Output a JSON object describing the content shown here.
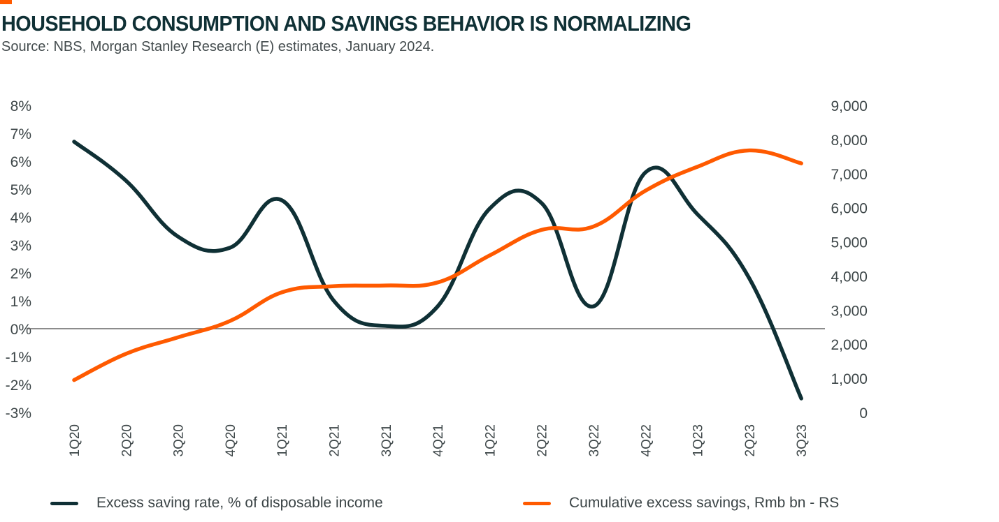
{
  "header": {
    "title": "HOUSEHOLD CONSUMPTION AND SAVINGS BEHAVIOR IS NORMALIZING",
    "subtitle": "Source: NBS, Morgan Stanley Research (E) estimates, January 2024."
  },
  "colors": {
    "accent": "#ff5a00",
    "series_dark": "#0f3035",
    "series_orange": "#ff5a00",
    "zero_line": "#666666",
    "axis_text": "#3d4648"
  },
  "chart_data": {
    "type": "line",
    "title": "HOUSEHOLD CONSUMPTION AND SAVINGS BEHAVIOR IS NORMALIZING",
    "categories": [
      "1Q20",
      "2Q20",
      "3Q20",
      "4Q20",
      "1Q21",
      "2Q21",
      "3Q21",
      "4Q21",
      "1Q22",
      "2Q22",
      "3Q22",
      "4Q22",
      "1Q23",
      "2Q23",
      "3Q23"
    ],
    "left_axis": {
      "min": -3,
      "max": 8,
      "step": 1,
      "tick_labels": [
        "8%",
        "7%",
        "6%",
        "5%",
        "4%",
        "3%",
        "2%",
        "1%",
        "0%",
        "-1%",
        "-2%",
        "-3%"
      ]
    },
    "right_axis": {
      "min": 0,
      "max": 9000,
      "step": 1000,
      "tick_labels": [
        "9,000",
        "8,000",
        "7,000",
        "6,000",
        "5,000",
        "4,000",
        "3,000",
        "2,000",
        "1,000",
        "0"
      ]
    },
    "zero_line": true,
    "grid": false,
    "legend_position": "bottom",
    "series": [
      {
        "name": "Excess saving rate, % of disposable income",
        "axis": "left",
        "values": [
          6.7,
          5.3,
          3.3,
          2.9,
          4.6,
          1.0,
          0.1,
          0.8,
          4.3,
          4.5,
          0.8,
          5.6,
          4.1,
          1.8,
          -2.5
        ]
      },
      {
        "name": "Cumulative excess savings, Rmb bn - RS",
        "axis": "right",
        "values": [
          950,
          1720,
          2200,
          2680,
          3520,
          3700,
          3720,
          3810,
          4600,
          5350,
          5450,
          6500,
          7200,
          7680,
          7300
        ]
      }
    ]
  },
  "legend": {
    "items": [
      {
        "label": "Excess saving rate, % of disposable income"
      },
      {
        "label": "Cumulative excess savings, Rmb bn - RS"
      }
    ]
  }
}
